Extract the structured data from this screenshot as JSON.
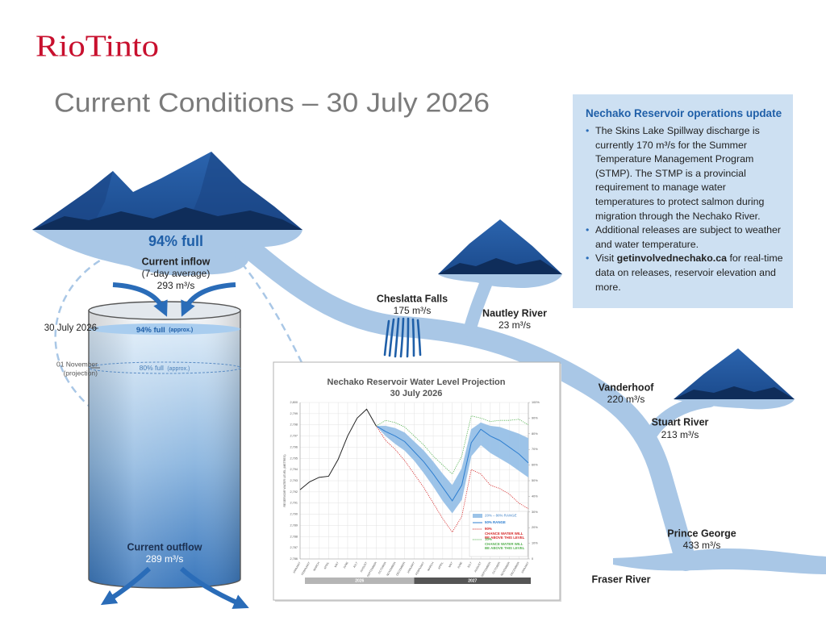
{
  "logo": "RioTinto",
  "header": {
    "title": "Current Conditions – 30 July 2026"
  },
  "info_box": {
    "title": "Nechako Reservoir operations update",
    "bullets": [
      "The Skins Lake Spillway discharge is currently 170 m³/s for the Summer Temperature Management Program (STMP). The STMP is a provincial requirement to manage water temperatures to protect salmon during migration through the Nechako River.",
      "Additional releases are subject to weather and water temperature.",
      {
        "before": "Visit",
        "link": "getinvolvednechako.ca",
        "after": "for real-time data on releases, reservoir elevation and more."
      }
    ]
  },
  "reservoir": {
    "status": "94% full",
    "inflow_label": "Current inflow",
    "inflow_note": "(7-day average)",
    "inflow": "293 m³/s",
    "current_date": "30 July 2026",
    "current_level": "94% full",
    "current_level_note": "(approx.)",
    "projection_date": "01 November",
    "projection_note": "(projection)",
    "projected_level": "80% full",
    "projected_level_note": "(approx.)",
    "outflow_label": "Current outflow",
    "outflow": "289 m³/s"
  },
  "locations": [
    {
      "name": "Cheslatta Falls",
      "flow": "175 m³/s"
    },
    {
      "name": "Nautley River",
      "flow": "23 m³/s"
    },
    {
      "name": "Vanderhoof",
      "flow": "220 m³/s"
    },
    {
      "name": "Stuart River",
      "flow": "213 m³/s"
    },
    {
      "name": "Prince George",
      "flow": "433 m³/s"
    },
    {
      "name": "Fraser River"
    }
  ],
  "chart_data": {
    "type": "line",
    "title": "Nechako Reservoir Water Level Projection",
    "subtitle": "30 July 2026",
    "y_label": "RESERVOIR WATER LEVEL (METRES)",
    "categories": [
      "JANUARY",
      "FEBRUARY",
      "MARCH",
      "APRIL",
      "MAY",
      "JUNE",
      "JULY",
      "AUGUST",
      "SEPTEMBER",
      "OCTOBER",
      "NOVEMBER",
      "DECEMBER",
      "JANUARY",
      "FEBRUARY",
      "MARCH",
      "APRIL",
      "MAY",
      "JUNE",
      "JULY",
      "AUGUST",
      "SEPTEMBER",
      "OCTOBER",
      "NOVEMBER",
      "DECEMBER",
      "JANUARY"
    ],
    "years": [
      "2026",
      "2027"
    ],
    "ylim": [
      2786,
      2800
    ],
    "yticks": [
      {
        "value": 2786,
        "label": "2,786"
      },
      {
        "value": 2787,
        "label": "2,787"
      },
      {
        "value": 2788,
        "label": "2,788"
      },
      {
        "value": 2789,
        "label": "2,789"
      },
      {
        "value": 2790,
        "label": "2,790"
      },
      {
        "value": 2791,
        "label": "2,791"
      },
      {
        "value": 2792,
        "label": "2,792"
      },
      {
        "value": 2793,
        "label": "2,793"
      },
      {
        "value": 2794,
        "label": "2,794"
      },
      {
        "value": 2795,
        "label": "2,795"
      },
      {
        "value": 2796,
        "label": "2,796"
      },
      {
        "value": 2797,
        "label": "2,797"
      },
      {
        "value": 2798,
        "label": "2,798"
      },
      {
        "value": 2799,
        "label": "2,799"
      },
      {
        "value": 2800,
        "label": "2,800"
      }
    ],
    "y2lim": [
      0,
      100
    ],
    "y2ticks": [
      0,
      {
        "value": 10,
        "label": "10%"
      },
      {
        "value": 20,
        "label": "20%"
      },
      {
        "value": 30,
        "label": "30%"
      },
      {
        "value": 40,
        "label": "40%"
      },
      {
        "value": 50,
        "label": "50%"
      },
      {
        "value": 60,
        "label": "60%"
      },
      {
        "value": 70,
        "label": "70%"
      },
      {
        "value": 80,
        "label": "80%"
      },
      {
        "value": 90,
        "label": "90%"
      },
      {
        "value": 100,
        "label": "100%"
      }
    ],
    "grid": true,
    "band": {
      "name": "20% – 80% RANGE",
      "color": "#9cc3e8",
      "low": [
        null,
        null,
        null,
        null,
        null,
        null,
        null,
        null,
        2797.9,
        2797.0,
        2796.3,
        2795.7,
        2794.8,
        2793.7,
        2792.5,
        2791.2,
        2790.1,
        2791.3,
        2795.2,
        2796.2,
        2795.5,
        2795.0,
        2794.5,
        2793.9,
        2793.3
      ],
      "high": [
        null,
        null,
        null,
        null,
        null,
        null,
        null,
        null,
        2797.9,
        2797.9,
        2797.7,
        2797.3,
        2796.5,
        2795.7,
        2794.7,
        2793.6,
        2792.6,
        2794.1,
        2797.6,
        2798.2,
        2797.9,
        2797.8,
        2797.5,
        2797.2,
        2796.8
      ]
    },
    "series": [
      {
        "color": "#222222",
        "values": [
          2792.2,
          2792.9,
          2793.3,
          2793.4,
          2794.9,
          2797.0,
          2798.6,
          2799.4,
          2797.9,
          null,
          null,
          null,
          null,
          null,
          null,
          null,
          null,
          null,
          null,
          null,
          null,
          null,
          null,
          null,
          null
        ]
      },
      {
        "name": "50% RANGE",
        "color": "#2f7fd0",
        "values": [
          null,
          null,
          null,
          null,
          null,
          null,
          null,
          null,
          2797.9,
          2797.4,
          2797.0,
          2796.5,
          2795.6,
          2794.7,
          2793.6,
          2792.4,
          2791.2,
          2792.6,
          2796.4,
          2797.6,
          2797.0,
          2796.6,
          2796.0,
          2795.4,
          2794.6
        ]
      },
      {
        "name": "90%",
        "note": "CHANCE WATER WILL BE ABOVE THIS LEVEL",
        "color": "#d62828",
        "dashed": true,
        "values": [
          null,
          null,
          null,
          null,
          null,
          null,
          null,
          null,
          2797.9,
          2796.6,
          2795.8,
          2794.8,
          2793.6,
          2792.4,
          2791.0,
          2789.6,
          2788.4,
          2789.8,
          2794.0,
          2793.6,
          2792.6,
          2792.3,
          2791.8,
          2791.0,
          2790.5
        ]
      },
      {
        "name": "10%",
        "note": "CHANCE WATER WILL BE ABOVE THIS LEVEL",
        "color": "#55b050",
        "dashed": true,
        "values": [
          null,
          null,
          null,
          null,
          null,
          null,
          null,
          null,
          2797.9,
          2798.4,
          2798.2,
          2797.8,
          2797.0,
          2796.2,
          2795.2,
          2794.4,
          2793.6,
          2795.2,
          2798.8,
          2798.6,
          2798.3,
          2798.4,
          2798.4,
          2798.5,
          2798.0
        ]
      }
    ]
  }
}
